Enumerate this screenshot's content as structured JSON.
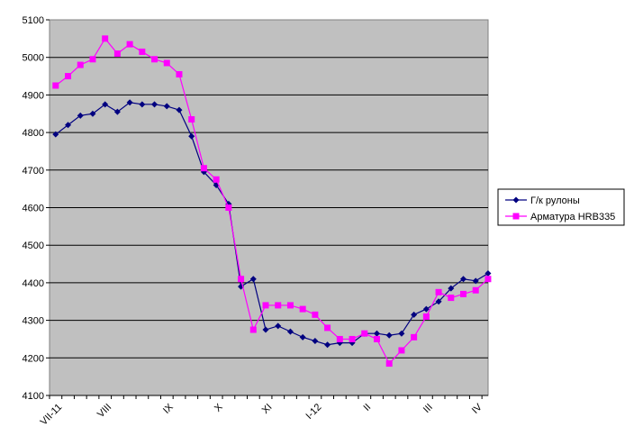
{
  "chart_data": {
    "type": "line",
    "title": "",
    "xlabel": "",
    "ylabel": "",
    "ylim": [
      4100,
      5100
    ],
    "yticks": [
      4100,
      4200,
      4300,
      4400,
      4500,
      4600,
      4700,
      4800,
      4900,
      5000,
      5100
    ],
    "x_tick_labels": [
      {
        "index": 0,
        "label": "VII-11"
      },
      {
        "index": 4,
        "label": "VIII"
      },
      {
        "index": 9,
        "label": "IX"
      },
      {
        "index": 13,
        "label": "X"
      },
      {
        "index": 17,
        "label": "XI"
      },
      {
        "index": 21,
        "label": "I-12"
      },
      {
        "index": 25,
        "label": "II"
      },
      {
        "index": 30,
        "label": "III"
      },
      {
        "index": 34,
        "label": "IV"
      }
    ],
    "grid": "horizontal",
    "background_color": "#c0c0c0",
    "legend_position": "right",
    "series": [
      {
        "name": "Г/к рулоны",
        "color": "#000080",
        "marker": "diamond",
        "values": [
          4795,
          4820,
          4845,
          4850,
          4875,
          4855,
          4880,
          4875,
          4875,
          4870,
          4860,
          4790,
          4695,
          4660,
          4610,
          4390,
          4410,
          4275,
          4285,
          4270,
          4255,
          4245,
          4235,
          4240,
          4240,
          4265,
          4265,
          4260,
          4265,
          4315,
          4330,
          4350,
          4385,
          4410,
          4405,
          4425
        ]
      },
      {
        "name": "Арматура HRB335",
        "color": "#ff00ff",
        "marker": "square",
        "values": [
          4925,
          4950,
          4980,
          4995,
          5050,
          5010,
          5035,
          5015,
          4995,
          4985,
          4955,
          4835,
          4705,
          4675,
          4600,
          4410,
          4275,
          4340,
          4340,
          4340,
          4330,
          4315,
          4280,
          4250,
          4250,
          4265,
          4250,
          4185,
          4220,
          4255,
          4310,
          4375,
          4360,
          4370,
          4380,
          4410
        ]
      }
    ]
  }
}
